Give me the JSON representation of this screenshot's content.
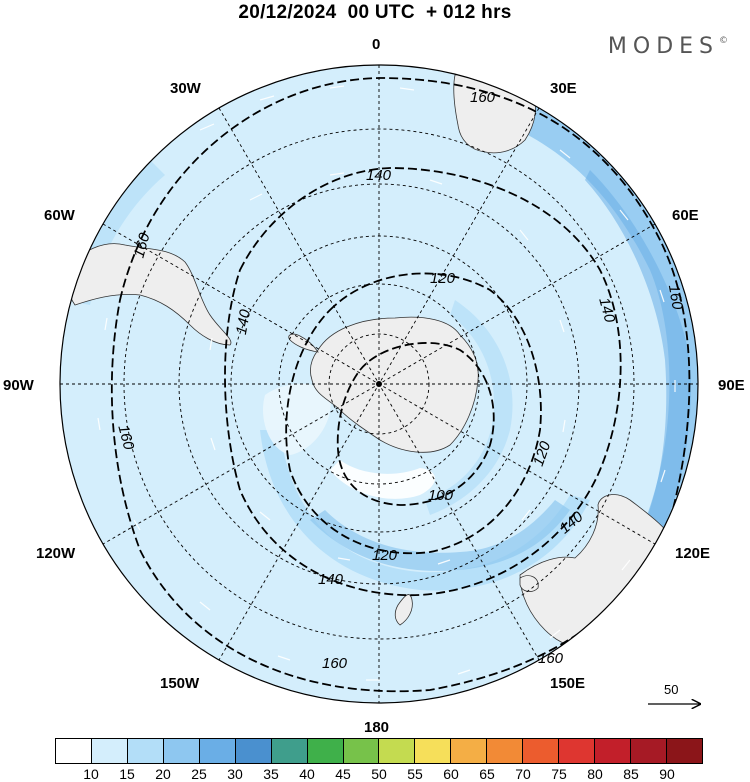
{
  "header": {
    "title": "20/12/2024  00 UTC  + 012 hrs",
    "brand": "MODES",
    "brand_mark": "©"
  },
  "map": {
    "projection": "south-polar-stereographic",
    "longitude_labels": {
      "top": "0",
      "top_right": "30E",
      "right_upper": "60E",
      "right": "90E",
      "right_lower": "120E",
      "bottom_right": "150E",
      "bottom": "180",
      "bottom_left": "150W",
      "left_lower": "120W",
      "left": "90W",
      "left_upper": "60W",
      "top_left": "30W"
    },
    "contour_labels": [
      {
        "id": "c160-a",
        "text": "160"
      },
      {
        "id": "c160-b",
        "text": "160"
      },
      {
        "id": "c160-c",
        "text": "160"
      },
      {
        "id": "c160-d",
        "text": "160"
      },
      {
        "id": "c160-e",
        "text": "160"
      },
      {
        "id": "c140-a",
        "text": "140"
      },
      {
        "id": "c140-b",
        "text": "140"
      },
      {
        "id": "c140-c",
        "text": "140"
      },
      {
        "id": "c140-d",
        "text": "140"
      },
      {
        "id": "c120-a",
        "text": "120"
      },
      {
        "id": "c120-b",
        "text": "120"
      },
      {
        "id": "c120-c",
        "text": "120"
      },
      {
        "id": "c100-a",
        "text": "100"
      }
    ],
    "fill_colors": {
      "ocean_light": "#d4eefc",
      "band_15": "#b3def8",
      "band_20": "#8ec7f0",
      "band_25": "#6aaee6",
      "land": "#eeeeee"
    },
    "reference_vector": "50"
  },
  "colorbar": {
    "ticks": [
      "10",
      "15",
      "20",
      "25",
      "30",
      "35",
      "40",
      "45",
      "50",
      "55",
      "60",
      "65",
      "70",
      "75",
      "80",
      "85",
      "90"
    ],
    "colors": [
      "#ffffff",
      "#d4eefc",
      "#b3def8",
      "#8ec7f0",
      "#6aaee6",
      "#4a90cf",
      "#3f9e8c",
      "#3fb04a",
      "#77c24a",
      "#c4db50",
      "#f6df5a",
      "#f4ae45",
      "#f28a36",
      "#ec5c2e",
      "#de3630",
      "#c21f2a",
      "#a61a25",
      "#8b1519"
    ]
  }
}
